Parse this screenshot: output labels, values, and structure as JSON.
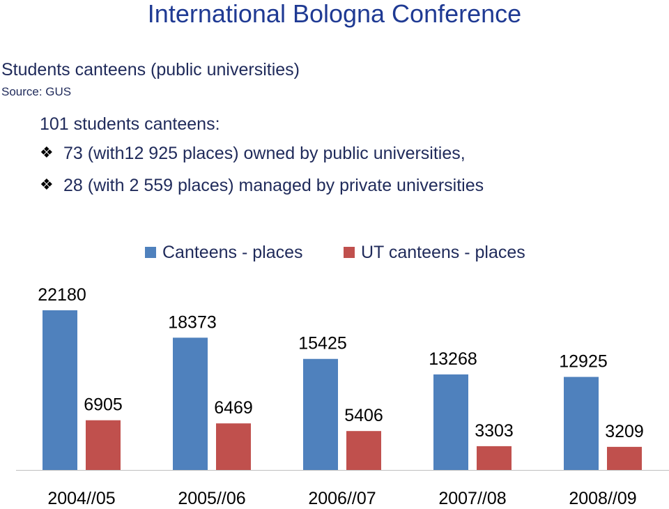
{
  "slide": {
    "title": "International Bologna Conference",
    "subtitle": "Students canteens (public universities)",
    "source": "Source: GUS",
    "intro": "101 students canteens:",
    "bullet_icon": "diamond-bullet-icon",
    "bullets": [
      "73 (with12 925 places) owned by public universities,",
      "28 (with 2 559 places) managed by private universities"
    ]
  },
  "chart_data": {
    "type": "bar",
    "categories": [
      "2004//05",
      "2005//06",
      "2006//07",
      "2007//08",
      "2008//09"
    ],
    "series": [
      {
        "name": "Canteens - places",
        "color": "#4f81bd",
        "values": [
          22180,
          18373,
          15425,
          13268,
          12925
        ]
      },
      {
        "name": "UT canteens - places",
        "color": "#c0504d",
        "values": [
          6905,
          6469,
          5406,
          3303,
          3209
        ]
      }
    ],
    "legend_position": "top",
    "grid": false,
    "ylim": [
      0,
      23000
    ]
  }
}
